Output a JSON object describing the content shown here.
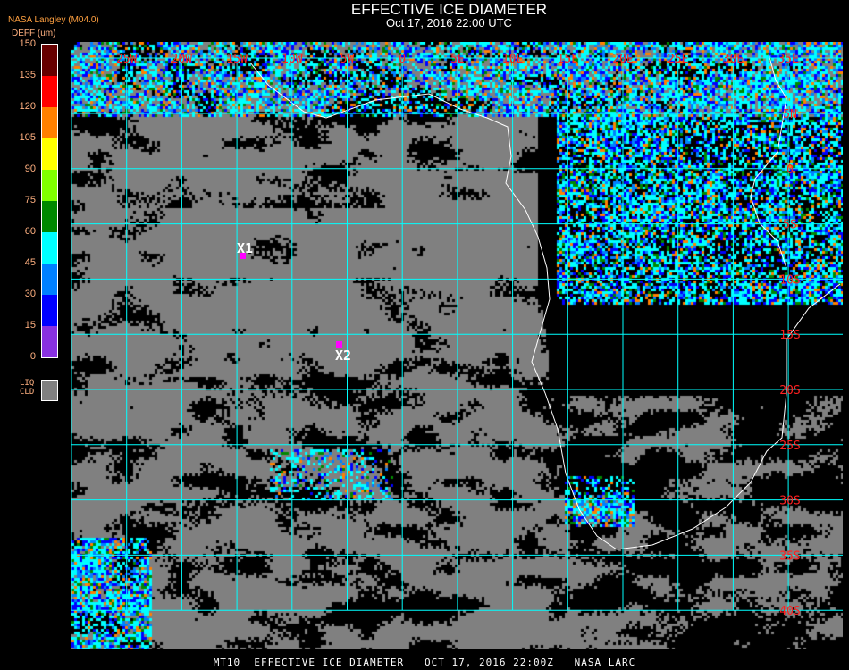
{
  "header": {
    "title": "EFFECTIVE ICE DIAMETER",
    "subtitle": "Oct 17, 2016 22:00 UTC",
    "organization": "NASA Langley (M04.0)"
  },
  "legend": {
    "unit": "DEFF (um)",
    "ticks": [
      "150",
      "135",
      "120",
      "105",
      "90",
      "75",
      "60",
      "45",
      "30",
      "15",
      "0"
    ],
    "colors": [
      "#660000",
      "#ff0000",
      "#ff8000",
      "#ffff00",
      "#80ff00",
      "#008800",
      "#00ffff",
      "#0080ff",
      "#0000ff",
      "#8830e0"
    ],
    "liquid_label": "LIQ\nCLD",
    "liquid_color": "#808080"
  },
  "map": {
    "grid_color": "#00ffff",
    "label_color": "#ff2020",
    "coastline_color": "#ffffff",
    "lon_labels": [
      "25W",
      "20W",
      "15W",
      "10W",
      "5W",
      "0",
      "5E",
      "10E",
      "15E",
      "20E",
      "25E",
      "30E",
      "35E"
    ],
    "lat_labels": [
      "5N",
      "0",
      "5S",
      "10S",
      "15S",
      "20S",
      "25S",
      "30S",
      "35S",
      "40S"
    ],
    "markers": [
      {
        "label": "X1",
        "color": "#ff00ff"
      },
      {
        "label": "X2",
        "color": "#ff00ff"
      }
    ]
  },
  "footer": "MT10  EFFECTIVE ICE DIAMETER   OCT 17, 2016 22:00Z   NASA LARC"
}
